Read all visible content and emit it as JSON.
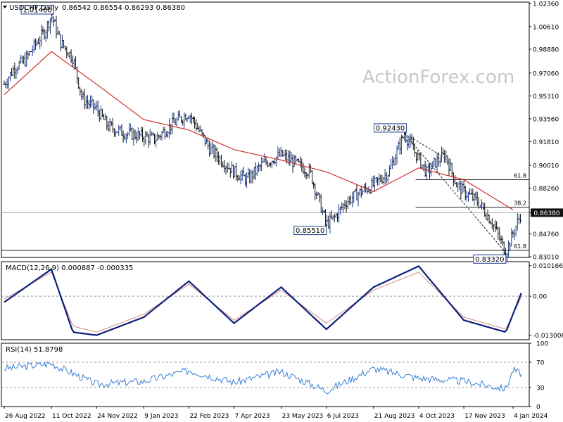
{
  "header": {
    "symbol_label": "USDCHF,Daily",
    "ohlc_label": "0.86542 0.86554 0.86293 0.86380",
    "watermark": "ActionForex.com"
  },
  "colors": {
    "bullish_bar": "#1a3a8a",
    "bearish_bar": "#111111",
    "ma_line": "#d0312d",
    "macd_line": "#0a1f7a",
    "macd_signal": "#d88a8a",
    "rsi_line": "#3a7fd5",
    "grid_dots": "#cccccc",
    "current_price_bg": "#111111"
  },
  "chart_data": [
    {
      "id": "price",
      "type": "line",
      "title": "USDCHF,Daily",
      "ohlc_last": {
        "open": 0.86542,
        "high": 0.86554,
        "low": 0.86293,
        "close": 0.8638
      },
      "ylim": [
        0.8296,
        1.0248
      ],
      "y_ticks": [
        "1.02360",
        "1.00610",
        "0.98880",
        "0.97060",
        "0.95310",
        "0.93560",
        "0.91810",
        "0.90010",
        "0.88260",
        "0.86380",
        "0.84760",
        "0.83010"
      ],
      "x_ticks": [
        "26 Aug 2022",
        "11 Oct 2022",
        "24 Nov 2022",
        "9 Jan 2023",
        "22 Feb 2023",
        "7 Apr 2023",
        "23 May 2023",
        "6 Jul 2023",
        "21 Aug 2023",
        "4 Oct 2023",
        "17 Nov 2023",
        "4 Jan 2024"
      ],
      "series": [
        {
          "name": "",
          "kind": "price_close",
          "x": [
            "26 Aug 2022",
            "5 Sep 2022",
            "15 Sep 2022",
            "25 Sep 2022",
            "5 Oct 2022",
            "11 Oct 2022",
            "20 Oct 2022",
            "1 Nov 2022",
            "10 Nov 2022",
            "24 Nov 2022",
            "5 Dec 2022",
            "20 Dec 2022",
            "9 Jan 2023",
            "20 Jan 2023",
            "5 Feb 2023",
            "22 Feb 2023",
            "5 Mar 2023",
            "15 Mar 2023",
            "7 Apr 2023",
            "20 Apr 2023",
            "5 May 2023",
            "23 May 2023",
            "5 Jun 2023",
            "20 Jun 2023",
            "6 Jul 2023",
            "14 Jul 2023",
            "25 Jul 2023",
            "5 Aug 2023",
            "21 Aug 2023",
            "5 Sep 2023",
            "10 Sep 2023",
            "20 Sep 2023",
            "4 Oct 2023",
            "12 Oct 2023",
            "20 Oct 2023",
            "30 Oct 2023",
            "10 Nov 2023",
            "17 Nov 2023",
            "1 Dec 2023",
            "15 Dec 2023",
            "28 Dec 2023",
            "4 Jan 2024",
            "12 Jan 2024"
          ],
          "y": [
            0.962,
            0.975,
            0.98,
            0.992,
            1.003,
            1.0146,
            0.994,
            0.982,
            0.951,
            0.943,
            0.93,
            0.925,
            0.922,
            0.92,
            0.931,
            0.94,
            0.925,
            0.912,
            0.895,
            0.889,
            0.901,
            0.908,
            0.902,
            0.895,
            0.8551,
            0.86,
            0.872,
            0.878,
            0.885,
            0.895,
            0.905,
            0.9243,
            0.905,
            0.894,
            0.902,
            0.908,
            0.885,
            0.88,
            0.872,
            0.856,
            0.8332,
            0.848,
            0.8638
          ]
        },
        {
          "name": "",
          "kind": "moving_average",
          "x": [
            "26 Aug 2022",
            "11 Oct 2022",
            "24 Nov 2022",
            "9 Jan 2023",
            "22 Feb 2023",
            "7 Apr 2023",
            "23 May 2023",
            "6 Jul 2023",
            "21 Aug 2023",
            "4 Oct 2023",
            "17 Nov 2023",
            "4 Jan 2024"
          ],
          "y": [
            0.954,
            0.987,
            0.962,
            0.935,
            0.927,
            0.912,
            0.904,
            0.895,
            0.88,
            0.898,
            0.889,
            0.866
          ]
        }
      ],
      "annotations": [
        {
          "label": "1.01460",
          "x": "11 Oct 2022",
          "y": 1.0146
        },
        {
          "label": "0.85510",
          "x": "6 Jul 2023",
          "y": 0.8551
        },
        {
          "label": "0.92430",
          "x": "20 Sep 2023",
          "y": 0.9243
        },
        {
          "label": "0.83320",
          "x": "28 Dec 2023",
          "y": 0.8332
        }
      ],
      "level_labels": [
        {
          "label": "61.8",
          "y": 0.889
        },
        {
          "label": "38.2",
          "y": 0.868
        },
        {
          "label": "61.8",
          "y": 0.835
        }
      ],
      "current_price": "0.86380",
      "grid": false,
      "legend": "none"
    },
    {
      "id": "macd",
      "type": "line",
      "title": "MACD(12,26,9) 0.000887 -0.000335",
      "ylim": [
        -0.0145,
        0.0115
      ],
      "y_ticks": [
        "0.010166",
        "0.00",
        "-0.013006"
      ],
      "series": [
        {
          "name": "",
          "kind": "macd",
          "x": [
            "26 Aug 2022",
            "11 Oct 2022",
            "1 Nov 2022",
            "24 Nov 2022",
            "9 Jan 2023",
            "22 Feb 2023",
            "7 Apr 2023",
            "23 May 2023",
            "6 Jul 2023",
            "21 Aug 2023",
            "4 Oct 2023",
            "17 Nov 2023",
            "28 Dec 2023",
            "12 Jan 2024"
          ],
          "y": [
            -0.002,
            0.009,
            -0.012,
            -0.013,
            -0.007,
            0.005,
            -0.009,
            0.003,
            -0.011,
            0.003,
            0.01,
            -0.008,
            -0.012,
            0.001
          ]
        },
        {
          "name": "",
          "kind": "signal",
          "x": [
            "26 Aug 2022",
            "11 Oct 2022",
            "1 Nov 2022",
            "24 Nov 2022",
            "9 Jan 2023",
            "22 Feb 2023",
            "7 Apr 2023",
            "23 May 2023",
            "6 Jul 2023",
            "21 Aug 2023",
            "4 Oct 2023",
            "17 Nov 2023",
            "28 Dec 2023",
            "12 Jan 2024"
          ],
          "y": [
            -0.001,
            0.008,
            -0.01,
            -0.012,
            -0.006,
            0.004,
            -0.008,
            0.002,
            -0.009,
            0.002,
            0.008,
            -0.007,
            -0.011,
            -0.0003
          ]
        }
      ]
    },
    {
      "id": "rsi",
      "type": "line",
      "title": "RSI(14) 51.8798",
      "ylim": [
        0,
        100
      ],
      "y_ticks": [
        "100",
        "70",
        "30",
        "0"
      ],
      "series": [
        {
          "name": "",
          "kind": "rsi",
          "x": [
            "26 Aug 2022",
            "11 Oct 2022",
            "24 Nov 2022",
            "9 Jan 2023",
            "22 Feb 2023",
            "7 Apr 2023",
            "23 May 2023",
            "6 Jul 2023",
            "21 Aug 2023",
            "4 Oct 2023",
            "17 Nov 2023",
            "28 Dec 2023",
            "4 Jan 2024",
            "12 Jan 2024"
          ],
          "y": [
            60,
            68,
            35,
            40,
            57,
            38,
            55,
            25,
            60,
            45,
            40,
            28,
            58,
            51.88
          ]
        }
      ]
    }
  ]
}
